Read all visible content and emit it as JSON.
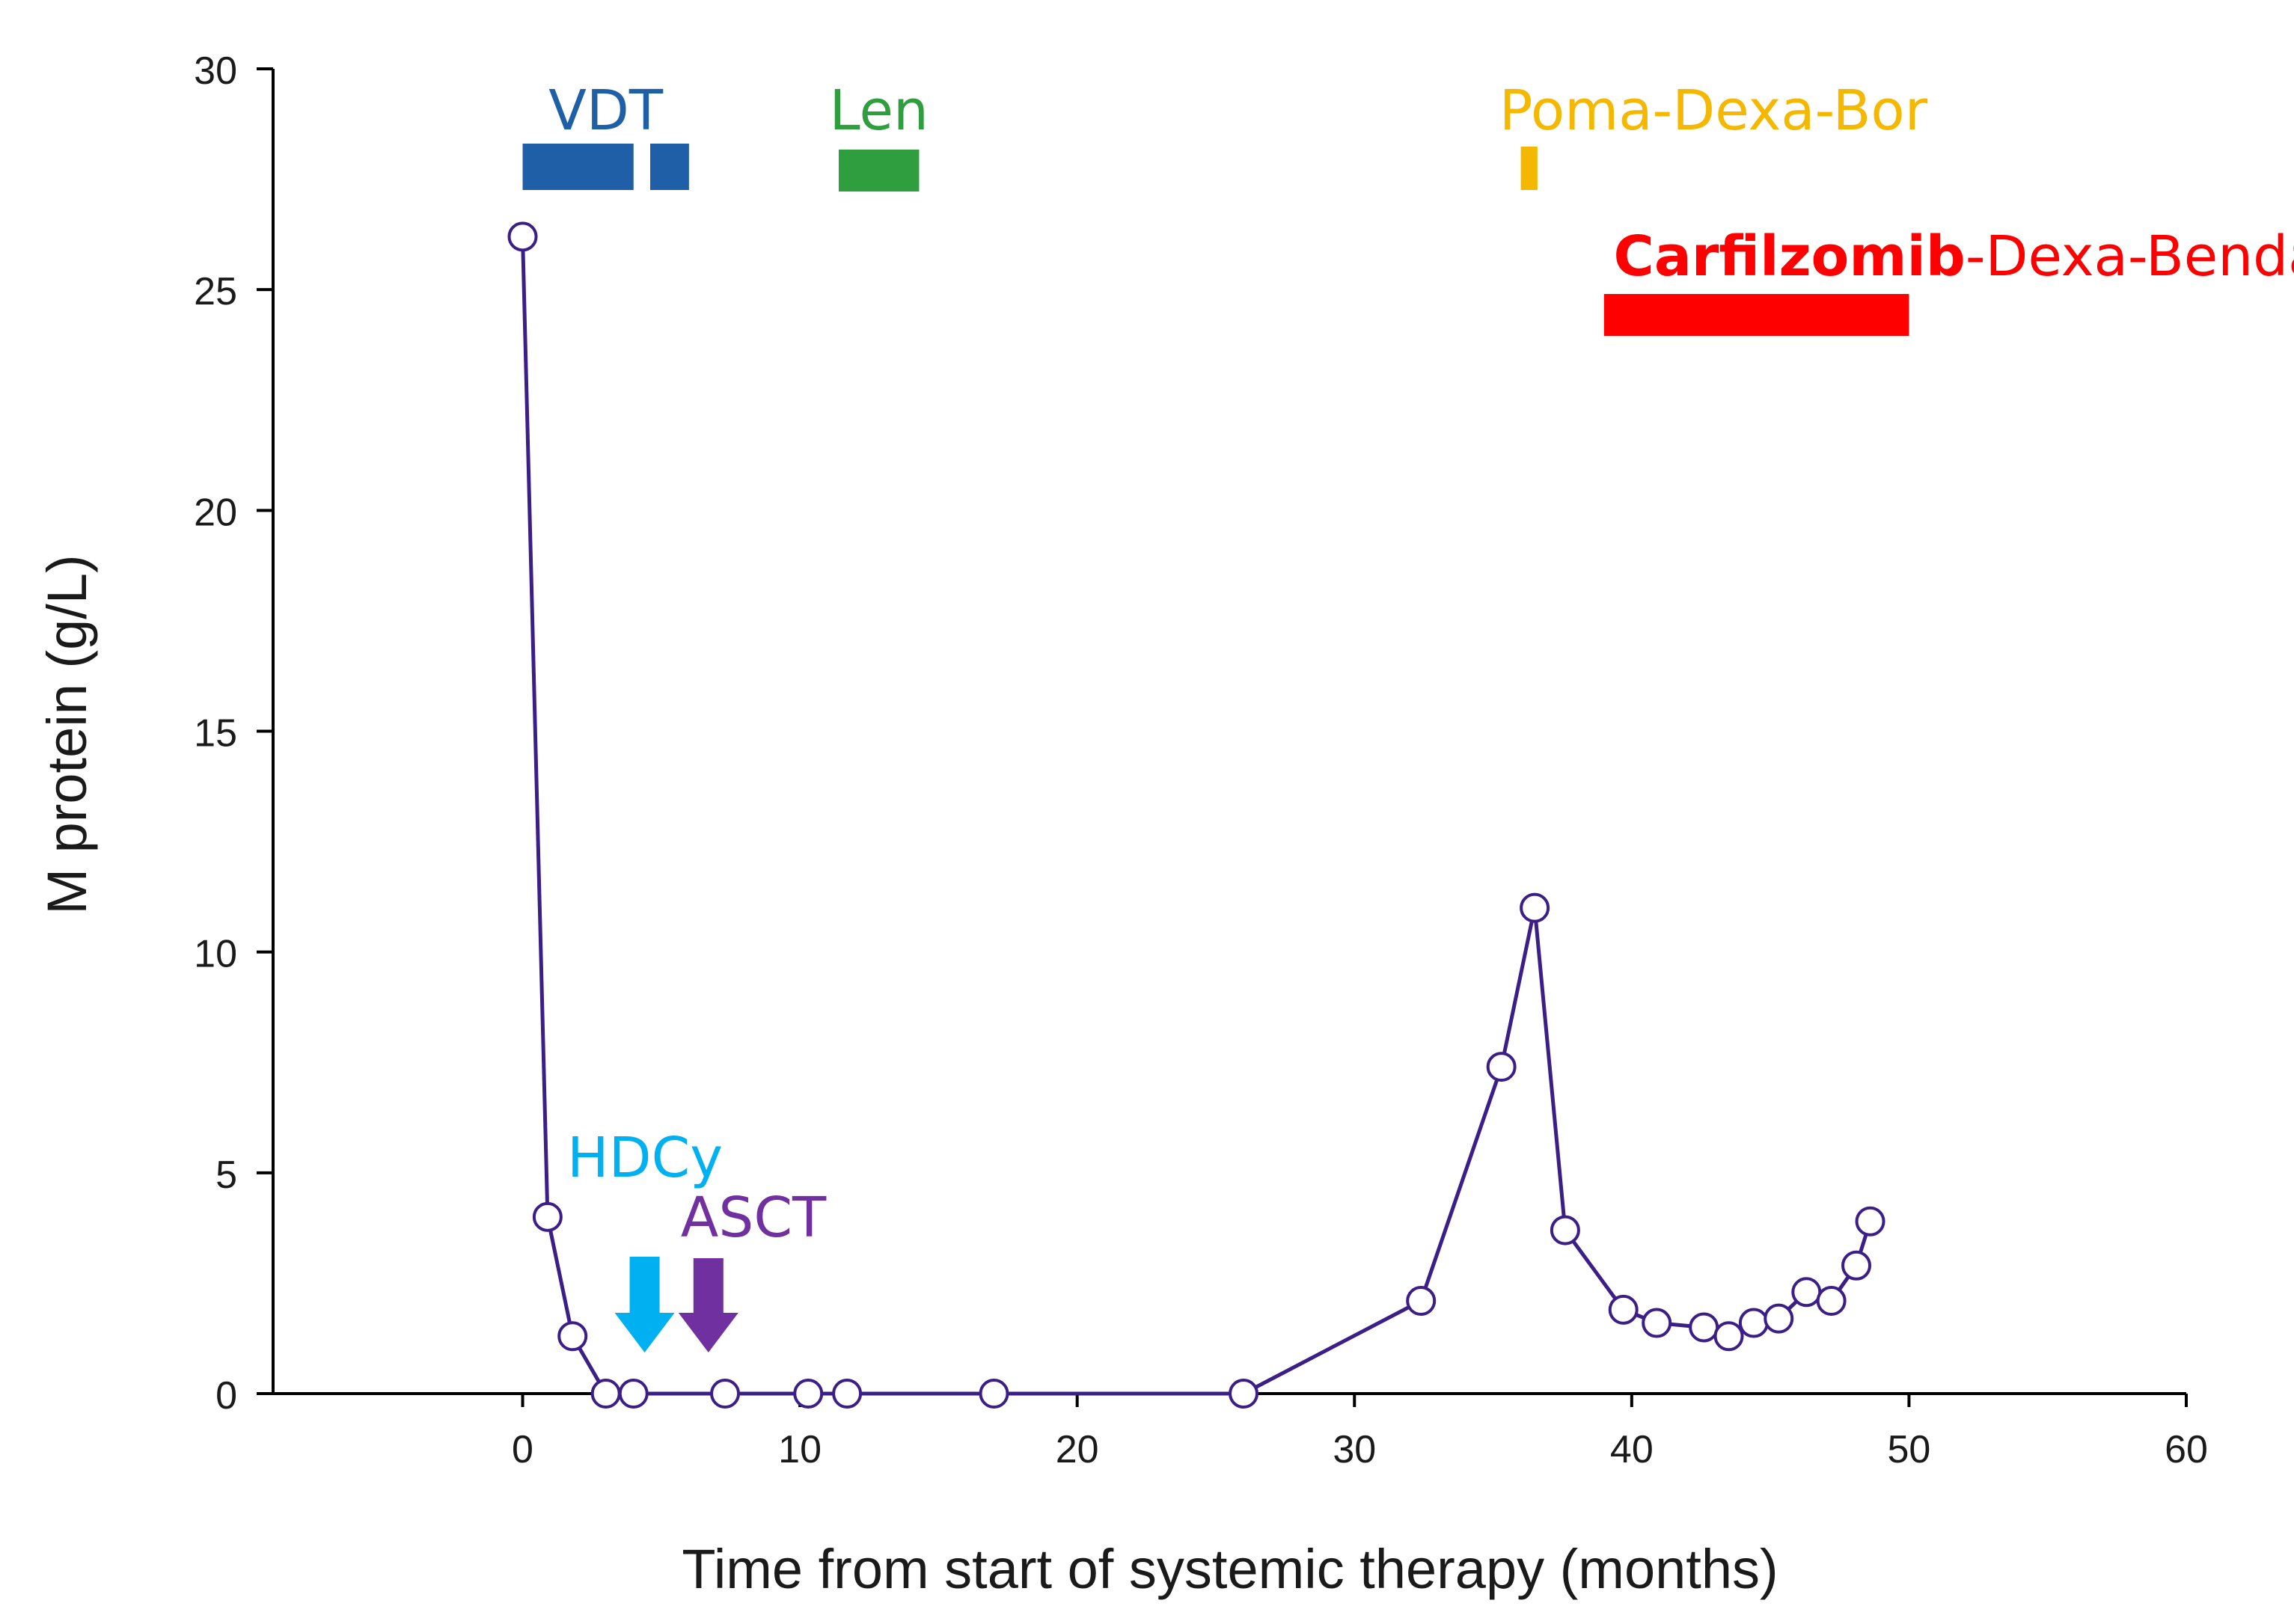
{
  "chart_data": {
    "type": "line",
    "xlabel": "Time from start of systemic therapy (months)",
    "ylabel": "M protein (g/L)",
    "xlim": [
      -9,
      60
    ],
    "ylim": [
      0,
      30
    ],
    "xticks": [
      0,
      10,
      20,
      30,
      40,
      50,
      60
    ],
    "yticks": [
      0,
      5,
      10,
      15,
      20,
      25,
      30
    ],
    "series": [
      {
        "name": "M protein",
        "color": "#3b1f87",
        "marker": "open-circle",
        "x": [
          0,
          0.9,
          1.8,
          3,
          4,
          7.3,
          10.3,
          11.7,
          17,
          26,
          32.4,
          35.3,
          36.5,
          37.6,
          39.7,
          40.9,
          42.6,
          43.5,
          44.4,
          45.3,
          46.3,
          47.2,
          48.1,
          48.6
        ],
        "y": [
          26.2,
          4,
          1.3,
          0,
          0,
          0,
          0,
          0,
          0,
          0,
          2.1,
          7.4,
          11,
          3.7,
          1.9,
          1.6,
          1.5,
          1.3,
          1.6,
          1.7,
          2.3,
          2.1,
          2.9,
          3.9
        ]
      }
    ],
    "treatments": [
      {
        "label": "VDT",
        "color": "#1f5fa8",
        "bars": [
          [
            0,
            4
          ],
          [
            4.6,
            6
          ]
        ]
      },
      {
        "label": "Len",
        "color": "#2e9e3e",
        "bars": [
          [
            11.4,
            14.3
          ]
        ]
      },
      {
        "label": "Poma-Dexa-Bor",
        "color": "#f5b800",
        "bars": [
          [
            36,
            36.6
          ]
        ]
      },
      {
        "label_bold": "Carfilzomib",
        "label_rest": "-Dexa-Benda",
        "color": "#ff0000",
        "bars": [
          [
            39,
            50
          ]
        ]
      }
    ],
    "events": [
      {
        "label": "HDCy",
        "color": "#00b0f0",
        "x": 4.4
      },
      {
        "label": "ASCT",
        "color": "#7030a0",
        "x": 6.7
      }
    ]
  }
}
